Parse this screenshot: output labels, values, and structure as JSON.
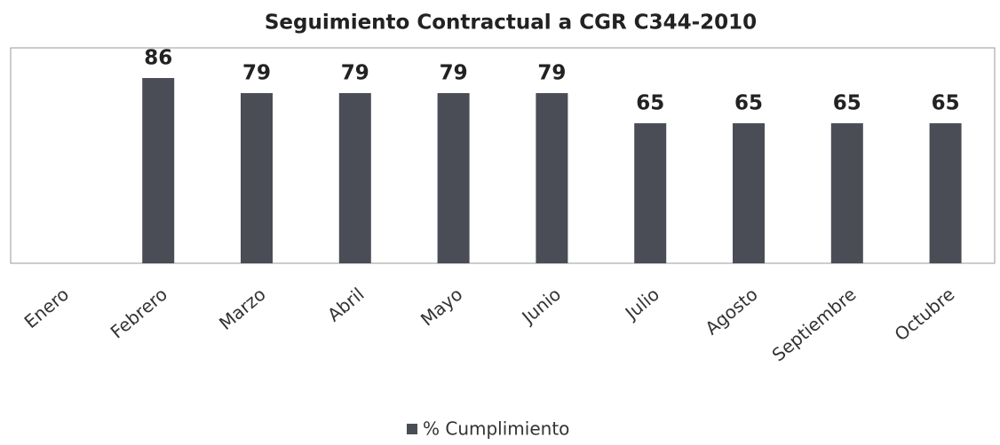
{
  "chart_data": {
    "type": "bar",
    "title": "Seguimiento Contractual a CGR C344-2010",
    "categories": [
      "Enero",
      "Febrero",
      "Marzo",
      "Abril",
      "Mayo",
      "Junio",
      "Julio",
      "Agosto",
      "Septiembre",
      "Octubre"
    ],
    "series": [
      {
        "name": "% Cumplimiento",
        "color": "#4a4d55",
        "values": [
          null,
          86,
          79,
          79,
          79,
          79,
          65,
          65,
          65,
          65
        ]
      }
    ],
    "ylim": [
      0,
      100
    ],
    "legend": "bottom"
  }
}
